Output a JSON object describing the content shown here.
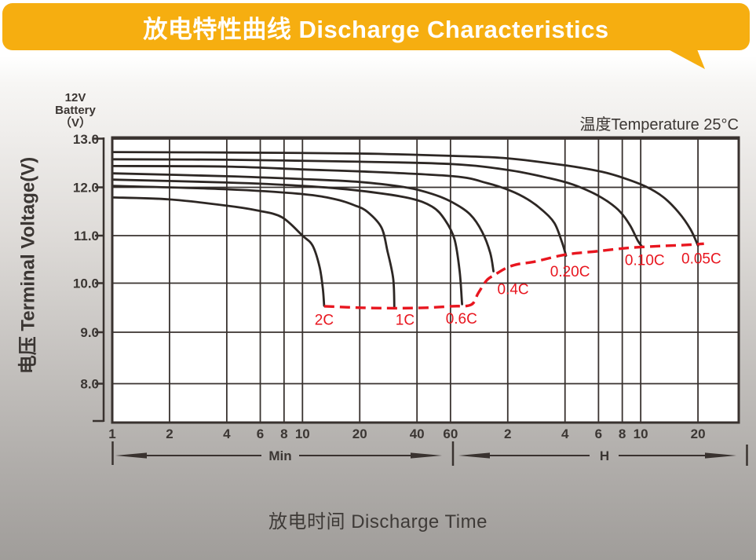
{
  "banner": {
    "title": "放电特性曲线 Discharge Characteristics"
  },
  "battery_label": {
    "lines": [
      "12V",
      "Battery",
      "（V）"
    ]
  },
  "temperature_note": "温度Temperature 25°C",
  "axis_titles": {
    "y": "电压 Terminal Voltage(V)",
    "x": "放电时间 Discharge Time"
  },
  "time_sections": {
    "minutes_label": "Min",
    "hours_label": "H"
  },
  "colors": {
    "banner_bg": "#F6AE10",
    "curve": "#2d2724",
    "grid": "#39322f",
    "red": "#e8161f",
    "text": "#3b3633",
    "plot_bg": "#ffffff"
  },
  "chart_data": {
    "type": "line",
    "title": "放电特性曲线 Discharge Characteristics",
    "xlabel": "放电时间 Discharge Time",
    "ylabel": "电压 Terminal Voltage(V)",
    "temperature": "温度Temperature 25°C",
    "x_scale": "log(minutes)",
    "x_ticks_minutes": [
      1,
      2,
      4,
      6,
      8,
      10,
      20,
      40,
      60
    ],
    "x_ticks_hours": [
      2,
      4,
      6,
      8,
      10,
      20
    ],
    "y_ticks": [
      13.0,
      12.0,
      11.0,
      10.0,
      9.0,
      8.0
    ],
    "ylim": [
      7.2,
      13.0
    ],
    "xlim_minutes": [
      1,
      1960
    ],
    "grid": true,
    "series": [
      {
        "name": "0.05C",
        "label_t": 1250,
        "label_v": 10.41,
        "points": [
          [
            1,
            12.73
          ],
          [
            4,
            12.72
          ],
          [
            20,
            12.7
          ],
          [
            62,
            12.65
          ],
          [
            120,
            12.6
          ],
          [
            245,
            12.45
          ],
          [
            376,
            12.32
          ],
          [
            490,
            12.19
          ],
          [
            635,
            12.02
          ],
          [
            787,
            11.8
          ],
          [
            950,
            11.48
          ],
          [
            1097,
            11.13
          ],
          [
            1200,
            10.79
          ]
        ]
      },
      {
        "name": "0.10C",
        "label_t": 630,
        "label_v": 10.38,
        "points": [
          [
            1,
            12.58
          ],
          [
            4,
            12.57
          ],
          [
            20,
            12.53
          ],
          [
            62,
            12.48
          ],
          [
            120,
            12.36
          ],
          [
            198,
            12.19
          ],
          [
            263,
            12.06
          ],
          [
            334,
            11.89
          ],
          [
            405,
            11.7
          ],
          [
            469,
            11.49
          ],
          [
            528,
            11.21
          ],
          [
            580,
            10.89
          ],
          [
            612,
            10.76
          ]
        ]
      },
      {
        "name": "0.20C",
        "label_t": 255,
        "label_v": 10.14,
        "points": [
          [
            1,
            12.44
          ],
          [
            4,
            12.43
          ],
          [
            10,
            12.37
          ],
          [
            20,
            12.33
          ],
          [
            62,
            12.23
          ],
          [
            93,
            12.09
          ],
          [
            124,
            11.93
          ],
          [
            153,
            11.75
          ],
          [
            182,
            11.53
          ],
          [
            211,
            11.26
          ],
          [
            231,
            10.87
          ],
          [
            243,
            10.58
          ]
        ]
      },
      {
        "name": "0.4C",
        "label_t": 128,
        "label_v": 9.78,
        "points": [
          [
            1,
            12.29
          ],
          [
            4,
            12.23
          ],
          [
            10,
            12.17
          ],
          [
            20,
            12.11
          ],
          [
            36,
            11.99
          ],
          [
            50,
            11.84
          ],
          [
            62,
            11.68
          ],
          [
            76,
            11.44
          ],
          [
            88,
            11.08
          ],
          [
            97,
            10.64
          ],
          [
            101,
            10.25
          ]
        ]
      },
      {
        "name": "0.6C",
        "label_t": 68.5,
        "label_v": 9.18,
        "points": [
          [
            1,
            12.16
          ],
          [
            4,
            12.1
          ],
          [
            10,
            12.03
          ],
          [
            20,
            11.93
          ],
          [
            36,
            11.78
          ],
          [
            48,
            11.6
          ],
          [
            56,
            11.33
          ],
          [
            63,
            10.92
          ],
          [
            67,
            10.25
          ],
          [
            69,
            9.57
          ]
        ]
      },
      {
        "name": "1C",
        "label_t": 34.6,
        "label_v": 9.15,
        "points": [
          [
            1,
            12.03
          ],
          [
            4,
            11.96
          ],
          [
            10,
            11.86
          ],
          [
            15,
            11.75
          ],
          [
            19,
            11.62
          ],
          [
            22,
            11.49
          ],
          [
            26,
            11.17
          ],
          [
            28,
            10.67
          ],
          [
            30,
            10.09
          ],
          [
            30.4,
            9.51
          ]
        ]
      },
      {
        "name": "2C",
        "label_t": 13,
        "label_v": 9.15,
        "points": [
          [
            1,
            11.79
          ],
          [
            2,
            11.75
          ],
          [
            4,
            11.62
          ],
          [
            5.8,
            11.52
          ],
          [
            7.8,
            11.38
          ],
          [
            10,
            11.0
          ],
          [
            11.3,
            10.79
          ],
          [
            12.3,
            10.34
          ],
          [
            12.8,
            9.88
          ],
          [
            13,
            9.54
          ]
        ]
      }
    ],
    "cutoff_curve": {
      "name": "final-discharge-voltage",
      "style": "dashed",
      "points": [
        [
          13,
          9.53
        ],
        [
          20,
          9.5
        ],
        [
          31,
          9.49
        ],
        [
          45,
          9.5
        ],
        [
          61,
          9.53
        ],
        [
          77,
          9.56
        ],
        [
          84,
          9.8
        ],
        [
          93,
          10.06
        ],
        [
          102,
          10.17
        ],
        [
          118,
          10.32
        ],
        [
          136,
          10.4
        ],
        [
          165,
          10.45
        ],
        [
          241,
          10.6
        ],
        [
          352,
          10.67
        ],
        [
          514,
          10.74
        ],
        [
          752,
          10.78
        ],
        [
          1000,
          10.8
        ],
        [
          1290,
          10.83
        ]
      ]
    }
  }
}
